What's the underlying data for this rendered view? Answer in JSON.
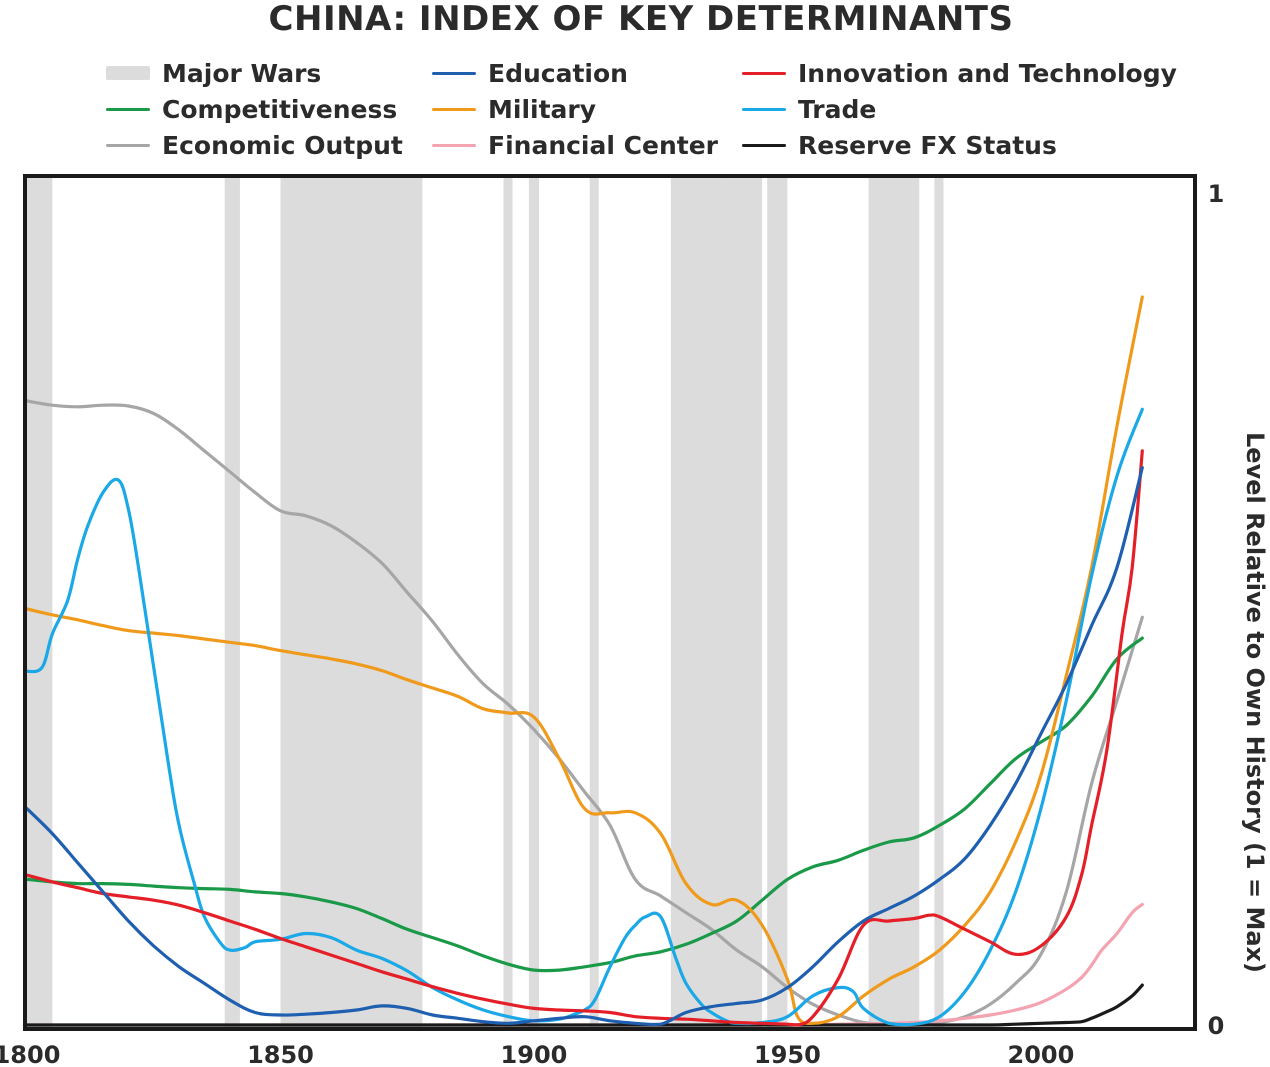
{
  "chart_data": {
    "type": "line",
    "title": "CHINA: INDEX OF KEY DETERMINANTS",
    "xlabel": "",
    "ylabel": "Level Relative to Own History (1 = Max)",
    "xlim": [
      1800,
      2030
    ],
    "ylim": [
      0,
      1
    ],
    "x_ticks": [
      "1800",
      "1850",
      "1900",
      "1950",
      "2000"
    ],
    "y_ticks": [
      "1",
      "0"
    ],
    "shaded_periods_label": "Major Wars",
    "shaded_color": "#dcdcdc",
    "shaded_periods": [
      [
        1800,
        1805
      ],
      [
        1839,
        1842
      ],
      [
        1850,
        1878
      ],
      [
        1894,
        1895
      ],
      [
        1899,
        1901
      ],
      [
        1911,
        1912
      ],
      [
        1927,
        1937
      ],
      [
        1937,
        1945
      ],
      [
        1946,
        1950
      ],
      [
        1966,
        1976
      ],
      [
        1979,
        1979
      ]
    ],
    "series": [
      {
        "name": "Education",
        "color": "#1f5fb0",
        "x": [
          1800,
          1805,
          1810,
          1815,
          1820,
          1825,
          1830,
          1835,
          1840,
          1845,
          1850,
          1855,
          1860,
          1865,
          1870,
          1875,
          1880,
          1885,
          1890,
          1895,
          1900,
          1905,
          1910,
          1915,
          1920,
          1925,
          1930,
          1935,
          1940,
          1945,
          1950,
          1955,
          1960,
          1965,
          1970,
          1975,
          1980,
          1985,
          1990,
          1995,
          2000,
          2005,
          2010,
          2015,
          2020
        ],
        "values": [
          0.26,
          0.23,
          0.195,
          0.16,
          0.125,
          0.095,
          0.07,
          0.05,
          0.03,
          0.015,
          0.012,
          0.013,
          0.015,
          0.018,
          0.023,
          0.02,
          0.012,
          0.008,
          0.004,
          0.002,
          0.005,
          0.008,
          0.01,
          0.005,
          0.002,
          0.001,
          0.015,
          0.022,
          0.026,
          0.03,
          0.045,
          0.07,
          0.1,
          0.125,
          0.14,
          0.155,
          0.175,
          0.2,
          0.24,
          0.29,
          0.35,
          0.41,
          0.48,
          0.55,
          0.67
        ]
      },
      {
        "name": "Competitiveness",
        "color": "#1a9a48",
        "x": [
          1800,
          1805,
          1810,
          1815,
          1820,
          1825,
          1830,
          1835,
          1840,
          1845,
          1850,
          1855,
          1860,
          1865,
          1870,
          1875,
          1880,
          1885,
          1890,
          1895,
          1900,
          1905,
          1910,
          1915,
          1920,
          1925,
          1930,
          1935,
          1940,
          1945,
          1950,
          1955,
          1960,
          1965,
          1970,
          1975,
          1980,
          1985,
          1990,
          1995,
          2000,
          2005,
          2010,
          2015,
          2020
        ],
        "values": [
          0.175,
          0.172,
          0.17,
          0.17,
          0.169,
          0.167,
          0.165,
          0.164,
          0.163,
          0.16,
          0.158,
          0.154,
          0.148,
          0.14,
          0.128,
          0.115,
          0.105,
          0.095,
          0.083,
          0.073,
          0.066,
          0.066,
          0.07,
          0.075,
          0.083,
          0.088,
          0.097,
          0.11,
          0.125,
          0.15,
          0.175,
          0.19,
          0.198,
          0.21,
          0.22,
          0.225,
          0.24,
          0.26,
          0.29,
          0.32,
          0.34,
          0.36,
          0.395,
          0.44,
          0.465
        ]
      },
      {
        "name": "Economic Output",
        "color": "#a6a6a6",
        "x": [
          1800,
          1805,
          1810,
          1815,
          1820,
          1825,
          1830,
          1835,
          1840,
          1845,
          1850,
          1855,
          1860,
          1865,
          1870,
          1875,
          1880,
          1885,
          1890,
          1895,
          1900,
          1905,
          1910,
          1915,
          1920,
          1925,
          1930,
          1935,
          1940,
          1945,
          1950,
          1955,
          1960,
          1965,
          1970,
          1975,
          1980,
          1985,
          1990,
          1995,
          2000,
          2005,
          2010,
          2015,
          2020
        ],
        "values": [
          0.75,
          0.745,
          0.743,
          0.745,
          0.744,
          0.735,
          0.715,
          0.69,
          0.665,
          0.64,
          0.618,
          0.612,
          0.6,
          0.58,
          0.555,
          0.52,
          0.485,
          0.445,
          0.41,
          0.385,
          0.355,
          0.32,
          0.28,
          0.24,
          0.175,
          0.155,
          0.135,
          0.115,
          0.09,
          0.07,
          0.045,
          0.025,
          0.012,
          0.003,
          0.001,
          0.001,
          0.003,
          0.01,
          0.025,
          0.05,
          0.085,
          0.16,
          0.29,
          0.39,
          0.49
        ]
      },
      {
        "name": "Military",
        "color": "#f09a1c",
        "x": [
          1800,
          1805,
          1810,
          1815,
          1820,
          1825,
          1830,
          1835,
          1840,
          1845,
          1850,
          1855,
          1860,
          1865,
          1870,
          1875,
          1880,
          1885,
          1890,
          1895,
          1900,
          1905,
          1910,
          1915,
          1920,
          1925,
          1930,
          1935,
          1940,
          1945,
          1950,
          1952,
          1955,
          1960,
          1965,
          1970,
          1975,
          1980,
          1985,
          1990,
          1995,
          2000,
          2005,
          2010,
          2015,
          2020
        ],
        "values": [
          0.5,
          0.493,
          0.487,
          0.48,
          0.474,
          0.471,
          0.468,
          0.464,
          0.46,
          0.456,
          0.45,
          0.445,
          0.44,
          0.434,
          0.426,
          0.415,
          0.405,
          0.395,
          0.38,
          0.375,
          0.37,
          0.32,
          0.26,
          0.255,
          0.255,
          0.23,
          0.17,
          0.145,
          0.15,
          0.12,
          0.055,
          0.01,
          0.002,
          0.01,
          0.035,
          0.055,
          0.07,
          0.09,
          0.12,
          0.16,
          0.22,
          0.3,
          0.42,
          0.55,
          0.72,
          0.875
        ]
      },
      {
        "name": "Financial Center",
        "color": "#f4a3b0",
        "x": [
          1800,
          1850,
          1900,
          1940,
          1960,
          1970,
          1975,
          1980,
          1985,
          1990,
          1995,
          2000,
          2005,
          2008,
          2010,
          2012,
          2015,
          2018,
          2020
        ],
        "values": [
          0.0,
          0.0,
          0.0,
          0.0,
          0.001,
          0.002,
          0.003,
          0.005,
          0.008,
          0.012,
          0.018,
          0.027,
          0.043,
          0.057,
          0.072,
          0.09,
          0.11,
          0.135,
          0.145
        ]
      },
      {
        "name": "Innovation and Technology",
        "color": "#e51f28",
        "x": [
          1800,
          1805,
          1810,
          1815,
          1820,
          1825,
          1830,
          1835,
          1840,
          1845,
          1850,
          1855,
          1860,
          1865,
          1870,
          1875,
          1880,
          1885,
          1890,
          1895,
          1900,
          1905,
          1910,
          1915,
          1920,
          1925,
          1930,
          1935,
          1940,
          1945,
          1950,
          1952,
          1955,
          1960,
          1965,
          1970,
          1975,
          1978,
          1980,
          1985,
          1990,
          1995,
          2000,
          2005,
          2008,
          2010,
          2013,
          2016,
          2018,
          2020
        ],
        "values": [
          0.18,
          0.172,
          0.165,
          0.158,
          0.154,
          0.15,
          0.144,
          0.135,
          0.125,
          0.115,
          0.104,
          0.094,
          0.084,
          0.074,
          0.064,
          0.055,
          0.046,
          0.038,
          0.031,
          0.025,
          0.02,
          0.018,
          0.017,
          0.015,
          0.01,
          0.008,
          0.007,
          0.005,
          0.003,
          0.002,
          0.001,
          0.0,
          0.01,
          0.055,
          0.12,
          0.125,
          0.128,
          0.132,
          0.13,
          0.115,
          0.1,
          0.085,
          0.095,
          0.13,
          0.18,
          0.24,
          0.33,
          0.47,
          0.55,
          0.69
        ]
      },
      {
        "name": "Trade",
        "color": "#1aa8e6",
        "x": [
          1800,
          1803,
          1805,
          1808,
          1810,
          1812,
          1815,
          1818,
          1820,
          1822,
          1825,
          1828,
          1830,
          1833,
          1835,
          1838,
          1840,
          1843,
          1845,
          1850,
          1855,
          1860,
          1865,
          1870,
          1875,
          1880,
          1885,
          1890,
          1895,
          1900,
          1905,
          1908,
          1910,
          1912,
          1915,
          1918,
          1920,
          1922,
          1925,
          1928,
          1930,
          1933,
          1935,
          1938,
          1940,
          1945,
          1950,
          1955,
          1960,
          1963,
          1965,
          1970,
          1975,
          1980,
          1985,
          1990,
          1995,
          2000,
          2005,
          2010,
          2015,
          2020
        ],
        "values": [
          0.425,
          0.43,
          0.47,
          0.51,
          0.56,
          0.6,
          0.64,
          0.655,
          0.62,
          0.55,
          0.43,
          0.31,
          0.24,
          0.17,
          0.13,
          0.1,
          0.09,
          0.093,
          0.1,
          0.103,
          0.11,
          0.105,
          0.09,
          0.08,
          0.065,
          0.045,
          0.03,
          0.018,
          0.01,
          0.005,
          0.007,
          0.013,
          0.018,
          0.03,
          0.07,
          0.105,
          0.12,
          0.13,
          0.13,
          0.08,
          0.05,
          0.025,
          0.015,
          0.005,
          0.002,
          0.003,
          0.01,
          0.035,
          0.045,
          0.04,
          0.02,
          0.002,
          0.001,
          0.01,
          0.04,
          0.09,
          0.16,
          0.26,
          0.39,
          0.54,
          0.66,
          0.74
        ]
      },
      {
        "name": "Reserve FX Status",
        "color": "#1a1a1a",
        "x": [
          1800,
          1900,
          1950,
          1980,
          1990,
          1995,
          2000,
          2005,
          2008,
          2010,
          2013,
          2015,
          2018,
          2020
        ],
        "values": [
          0.0,
          0.0,
          0.0,
          0.0,
          0.0,
          0.001,
          0.002,
          0.003,
          0.004,
          0.008,
          0.016,
          0.022,
          0.035,
          0.048
        ]
      }
    ]
  },
  "legend": {
    "items": [
      {
        "label": "Major Wars",
        "color": "#dcdcdc",
        "kind": "band"
      },
      {
        "label": "Education",
        "color": "#1f5fb0",
        "kind": "line"
      },
      {
        "label": "Innovation and Technology",
        "color": "#e51f28",
        "kind": "line"
      },
      {
        "label": "Competitiveness",
        "color": "#1a9a48",
        "kind": "line"
      },
      {
        "label": "Military",
        "color": "#f09a1c",
        "kind": "line"
      },
      {
        "label": "Trade",
        "color": "#1aa8e6",
        "kind": "line"
      },
      {
        "label": "Economic Output",
        "color": "#a6a6a6",
        "kind": "line"
      },
      {
        "label": "Financial Center",
        "color": "#f4a3b0",
        "kind": "line"
      },
      {
        "label": "Reserve FX Status",
        "color": "#1a1a1a",
        "kind": "line"
      }
    ]
  }
}
